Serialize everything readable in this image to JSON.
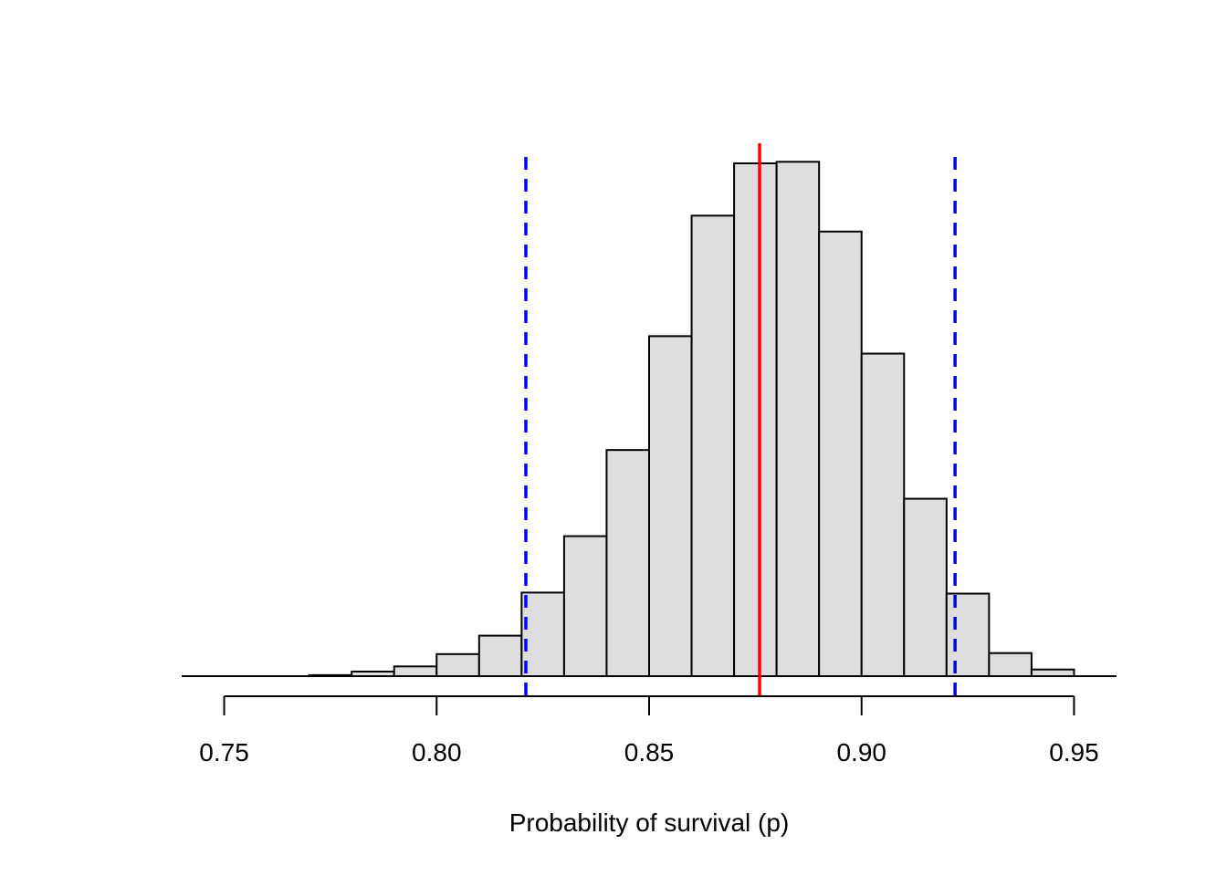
{
  "chart_data": {
    "type": "histogram",
    "title": "",
    "xlabel": "Probability of survival (p)",
    "ylabel": "",
    "xlim": [
      0.74,
      0.96
    ],
    "ylim": [
      0,
      1
    ],
    "x_ticks": [
      0.75,
      0.8,
      0.85,
      0.9,
      0.95
    ],
    "x_tick_labels": [
      "0.75",
      "0.80",
      "0.85",
      "0.90",
      "0.95"
    ],
    "y_axis_shown": false,
    "grid": false,
    "bins": {
      "edges": [
        0.77,
        0.78,
        0.79,
        0.8,
        0.81,
        0.82,
        0.83,
        0.84,
        0.85,
        0.86,
        0.87,
        0.88,
        0.89,
        0.9,
        0.91,
        0.92,
        0.93,
        0.94,
        0.95
      ],
      "relative_heights": [
        0.002,
        0.009,
        0.019,
        0.043,
        0.079,
        0.163,
        0.273,
        0.441,
        0.663,
        0.898,
        1.0,
        1.003,
        0.867,
        0.629,
        0.346,
        0.161,
        0.045,
        0.013
      ]
    },
    "bar_fill": "#dedede",
    "bar_stroke": "#000000",
    "reference_lines": [
      {
        "value": 0.876,
        "color": "#ff0000",
        "style": "solid"
      },
      {
        "value": 0.821,
        "color": "#0000ff",
        "style": "dashed"
      },
      {
        "value": 0.922,
        "color": "#0000ff",
        "style": "dashed"
      }
    ]
  }
}
